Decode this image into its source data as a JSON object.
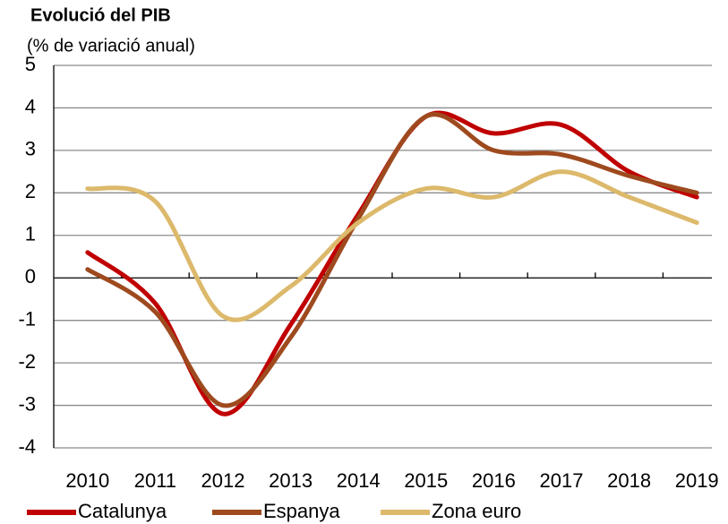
{
  "chart_data": {
    "type": "line",
    "title": "Evolució del PIB",
    "subtitle": "(% de variació anual)",
    "categories": [
      "2010",
      "2011",
      "2012",
      "2013",
      "2014",
      "2015",
      "2016",
      "2017",
      "2018",
      "2019"
    ],
    "series": [
      {
        "name": "Catalunya",
        "color": "#c00000",
        "values": [
          0.6,
          -0.6,
          -3.2,
          -1.1,
          1.5,
          3.8,
          3.4,
          3.6,
          2.5,
          1.9
        ]
      },
      {
        "name": "Espanya",
        "color": "#9e4a1e",
        "values": [
          0.2,
          -0.8,
          -3.0,
          -1.4,
          1.4,
          3.8,
          3.0,
          2.9,
          2.4,
          2.0
        ]
      },
      {
        "name": "Zona euro",
        "color": "#dcb96b",
        "values": [
          2.1,
          1.8,
          -0.9,
          -0.2,
          1.3,
          2.1,
          1.9,
          2.5,
          1.9,
          1.3
        ]
      }
    ],
    "ylim": [
      -4,
      5
    ],
    "yticks": [
      -4,
      -3,
      -2,
      -1,
      0,
      1,
      2,
      3,
      4,
      5
    ],
    "grid": true,
    "legend": "bottom"
  }
}
